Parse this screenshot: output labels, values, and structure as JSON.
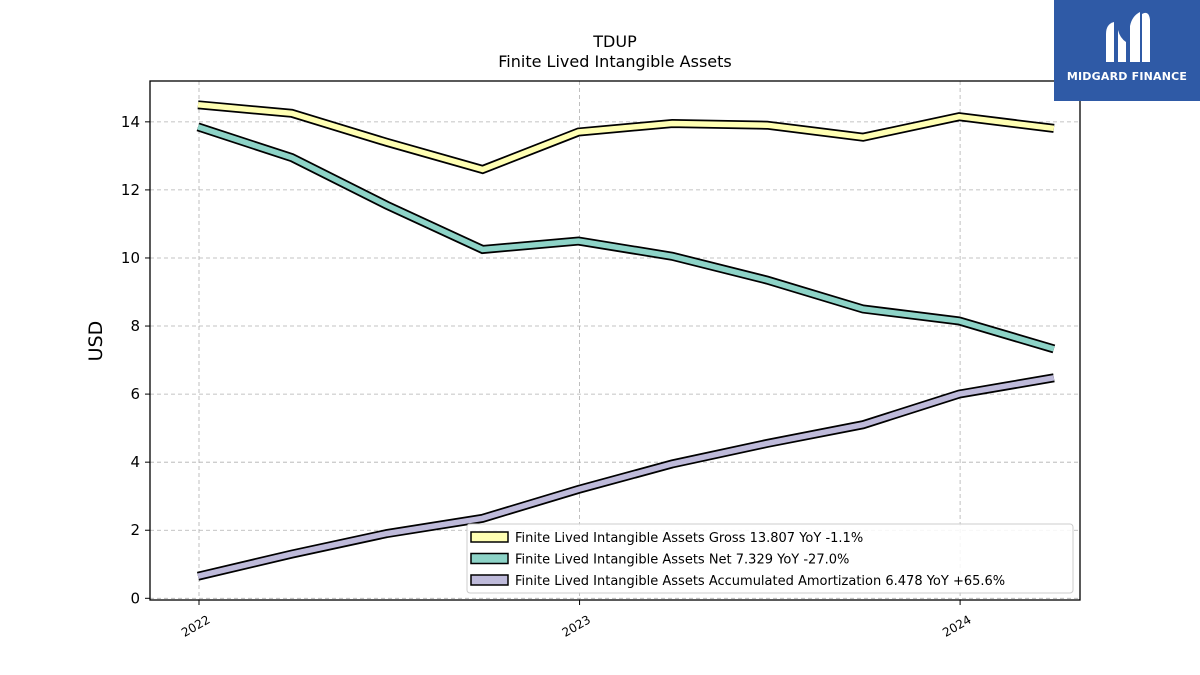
{
  "chart_data": {
    "type": "line",
    "title": "TDUP",
    "subtitle": "Finite Lived Intangible Assets",
    "xlabel": "",
    "ylabel": "USD",
    "x": [
      "2021-12-31",
      "2022-03-31",
      "2022-06-30",
      "2022-09-30",
      "2022-12-31",
      "2023-03-31",
      "2023-06-30",
      "2023-09-30",
      "2023-12-31",
      "2024-03-31"
    ],
    "xlim": [
      "2021-11-15",
      "2024-04-25"
    ],
    "x_ticks": [
      {
        "label": "2022",
        "date": "2022-01-01"
      },
      {
        "label": "2023",
        "date": "2023-01-01"
      },
      {
        "label": "2024",
        "date": "2024-01-01"
      }
    ],
    "ylim": [
      -0.05,
      15.2
    ],
    "y_ticks": [
      0,
      2,
      4,
      6,
      8,
      10,
      12,
      14
    ],
    "grid": true,
    "legend_position": "lower-right",
    "series": [
      {
        "name": "Finite Lived Intangible Assets Gross  13.807 YoY -1.1%",
        "color": "#ffffb3",
        "values": [
          14.5,
          14.25,
          13.4,
          12.6,
          13.7,
          13.95,
          13.9,
          13.55,
          14.15,
          13.807
        ]
      },
      {
        "name": "Finite Lived Intangible Assets Net  7.329 YoY -27.0%",
        "color": "#8dd3c7",
        "values": [
          13.85,
          12.95,
          11.55,
          10.25,
          10.5,
          10.05,
          9.35,
          8.5,
          8.15,
          7.329
        ]
      },
      {
        "name": "Finite Lived Intangible Assets Accumulated Amortization  6.478 YoY +65.6%",
        "color": "#bebada",
        "values": [
          0.65,
          1.3,
          1.9,
          2.35,
          3.2,
          3.95,
          4.55,
          5.1,
          6.0,
          6.478
        ]
      }
    ]
  },
  "logo": {
    "text": "MIDGARD FINANCE"
  }
}
